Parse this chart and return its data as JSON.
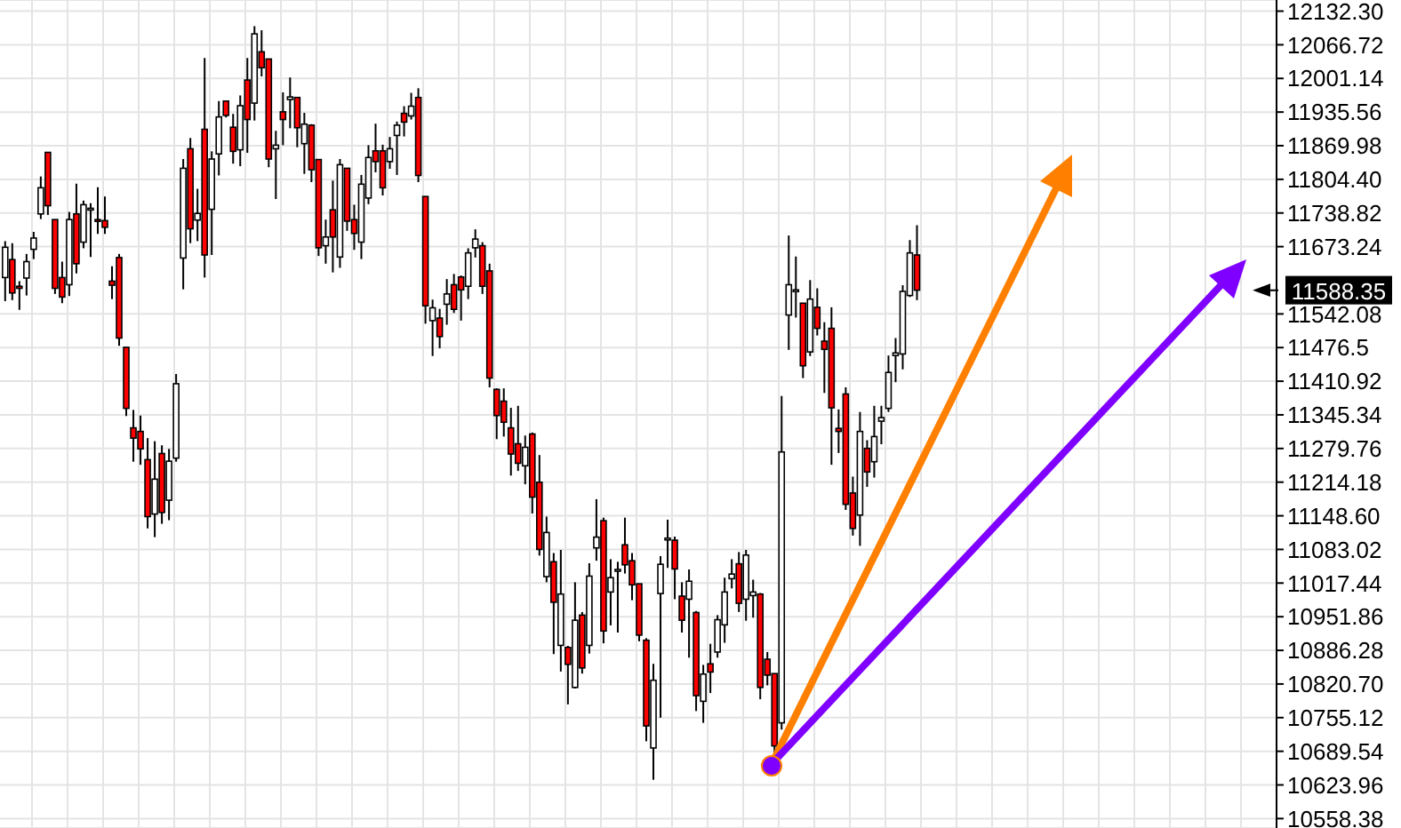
{
  "chart_data": {
    "type": "candlestick",
    "categories": [
      null,
      null,
      null,
      null,
      null,
      null,
      null,
      null,
      null,
      null,
      null,
      null,
      null,
      null,
      null,
      null,
      null,
      null,
      null,
      null,
      null,
      null,
      null,
      null,
      null,
      null,
      null,
      null,
      null,
      null,
      null,
      null,
      null,
      null,
      null,
      null,
      null,
      null,
      null,
      null,
      null,
      null,
      null,
      null,
      null,
      null,
      null,
      null,
      null,
      null,
      null,
      null,
      null,
      null,
      null,
      null,
      null,
      null,
      null,
      null,
      null,
      null,
      null,
      null,
      null,
      null,
      null,
      null,
      null,
      null,
      null,
      null,
      null,
      null,
      null,
      null,
      null,
      null,
      null,
      null,
      null,
      null,
      null,
      null,
      null,
      null,
      null,
      null,
      null,
      null,
      null,
      null,
      null,
      null,
      null,
      null,
      null,
      null,
      null,
      null,
      null,
      null,
      null,
      null,
      null,
      null,
      null,
      null,
      null,
      null,
      null,
      null,
      null,
      null,
      null,
      null,
      null,
      null,
      null,
      null,
      null,
      null,
      null,
      null,
      null,
      null,
      null,
      null,
      null,
      null,
      null,
      null,
      null,
      null,
      null,
      null,
      null,
      null,
      null,
      null,
      null,
      null,
      null,
      null,
      null,
      null,
      null,
      null,
      null,
      null,
      null,
      null,
      null,
      null,
      null,
      null,
      null,
      null,
      null,
      null,
      null,
      null,
      null,
      null,
      null,
      null,
      null,
      null,
      null,
      null,
      null,
      null,
      null,
      null,
      null,
      null,
      null,
      null,
      null
    ],
    "ohlc": [
      [
        11613,
        11684,
        11567,
        11672
      ],
      [
        11648,
        11680,
        11569,
        11583
      ],
      [
        11596,
        11606,
        11550,
        11592
      ],
      [
        11612,
        11659,
        11578,
        11644
      ],
      [
        11668,
        11702,
        11649,
        11690
      ],
      [
        11737,
        11810,
        11727,
        11788
      ],
      [
        11857,
        11857,
        11735,
        11753
      ],
      [
        11726,
        11726,
        11581,
        11592
      ],
      [
        11613,
        11644,
        11563,
        11575
      ],
      [
        11599,
        11741,
        11577,
        11726
      ],
      [
        11737,
        11796,
        11621,
        11640
      ],
      [
        11682,
        11763,
        11670,
        11755
      ],
      [
        11746,
        11758,
        11653,
        11748
      ],
      [
        11726,
        11789,
        11698,
        11725
      ],
      [
        11724,
        11771,
        11698,
        11711
      ],
      [
        11606,
        11635,
        11571,
        11598
      ],
      [
        11652,
        11659,
        11480,
        11495
      ],
      [
        11477,
        11477,
        11343,
        11358
      ],
      [
        11320,
        11355,
        11254,
        11300
      ],
      [
        11313,
        11344,
        11248,
        11279
      ],
      [
        11258,
        11300,
        11124,
        11147
      ],
      [
        11152,
        11294,
        11107,
        11220
      ],
      [
        11270,
        11286,
        11133,
        11155
      ],
      [
        11179,
        11279,
        11140,
        11255
      ],
      [
        11261,
        11425,
        11254,
        11406
      ],
      [
        11651,
        11844,
        11590,
        11826
      ],
      [
        11864,
        11885,
        11680,
        11708
      ],
      [
        11725,
        11786,
        11684,
        11738
      ],
      [
        11902,
        12041,
        11613,
        11657
      ],
      [
        11746,
        11859,
        11657,
        11844
      ],
      [
        11854,
        11957,
        11812,
        11926
      ],
      [
        11957,
        11957,
        11925,
        11929
      ],
      [
        11906,
        11932,
        11835,
        11859
      ],
      [
        11862,
        11968,
        11830,
        11948
      ],
      [
        11998,
        12041,
        11856,
        11921
      ],
      [
        11953,
        12103,
        11919,
        12088
      ],
      [
        12053,
        12095,
        12005,
        12022
      ],
      [
        12039,
        12039,
        11828,
        11844
      ],
      [
        11864,
        11899,
        11766,
        11871
      ],
      [
        11936,
        11974,
        11871,
        11921
      ],
      [
        11960,
        12003,
        11904,
        11965
      ],
      [
        11964,
        11964,
        11867,
        11905
      ],
      [
        11874,
        11934,
        11815,
        11912
      ],
      [
        11910,
        11912,
        11799,
        11823
      ],
      [
        11843,
        11843,
        11655,
        11671
      ],
      [
        11675,
        11726,
        11640,
        11692
      ],
      [
        11745,
        11802,
        11623,
        11692
      ],
      [
        11653,
        11844,
        11632,
        11833
      ],
      [
        11826,
        11826,
        11704,
        11723
      ],
      [
        11726,
        11755,
        11667,
        11699
      ],
      [
        11682,
        11813,
        11649,
        11795
      ],
      [
        11768,
        11871,
        11756,
        11847
      ],
      [
        11860,
        11913,
        11818,
        11839
      ],
      [
        11860,
        11872,
        11773,
        11788
      ],
      [
        11839,
        11887,
        11825,
        11864
      ],
      [
        11890,
        11917,
        11813,
        11910
      ],
      [
        11933,
        11947,
        11888,
        11916
      ],
      [
        11928,
        11973,
        11921,
        11947
      ],
      [
        11964,
        11982,
        11799,
        11812
      ],
      [
        11771,
        11771,
        11523,
        11558
      ],
      [
        11529,
        11570,
        11460,
        11554
      ],
      [
        11534,
        11552,
        11475,
        11498
      ],
      [
        11561,
        11610,
        11521,
        11581
      ],
      [
        11599,
        11620,
        11544,
        11551
      ],
      [
        11614,
        11617,
        11529,
        11589
      ],
      [
        11596,
        11670,
        11571,
        11661
      ],
      [
        11671,
        11707,
        11652,
        11688
      ],
      [
        11675,
        11682,
        11581,
        11596
      ],
      [
        11626,
        11640,
        11399,
        11417
      ],
      [
        11395,
        11397,
        11298,
        11344
      ],
      [
        11372,
        11397,
        11303,
        11331
      ],
      [
        11320,
        11359,
        11227,
        11269
      ],
      [
        11289,
        11363,
        11236,
        11251
      ],
      [
        11246,
        11305,
        11210,
        11282
      ],
      [
        11308,
        11311,
        11153,
        11185
      ],
      [
        11214,
        11267,
        11071,
        11083
      ],
      [
        11030,
        11147,
        11019,
        11116
      ],
      [
        11059,
        11076,
        10879,
        10980
      ],
      [
        10896,
        11082,
        10845,
        10996
      ],
      [
        10892,
        10895,
        10781,
        10859
      ],
      [
        10814,
        11019,
        10812,
        10945
      ],
      [
        10955,
        10961,
        10841,
        10852
      ],
      [
        10896,
        11056,
        10880,
        11031
      ],
      [
        11086,
        11181,
        11061,
        11107
      ],
      [
        11139,
        11145,
        10900,
        10924
      ],
      [
        11000,
        11064,
        10935,
        11028
      ],
      [
        11043,
        11059,
        10921,
        11044
      ],
      [
        11092,
        11145,
        11036,
        11053
      ],
      [
        11061,
        11076,
        10984,
        11014
      ],
      [
        11016,
        11016,
        10904,
        10916
      ],
      [
        10906,
        10910,
        10709,
        10739
      ],
      [
        10696,
        10860,
        10634,
        10828
      ],
      [
        10997,
        11070,
        10755,
        11054
      ],
      [
        11104,
        11141,
        11047,
        11105
      ],
      [
        11101,
        11108,
        10986,
        11045
      ],
      [
        10992,
        11019,
        10921,
        10945
      ],
      [
        10986,
        11044,
        10872,
        11021
      ],
      [
        10960,
        10963,
        10768,
        10798
      ],
      [
        10787,
        10858,
        10745,
        10840
      ],
      [
        10860,
        10899,
        10803,
        10844
      ],
      [
        10883,
        10955,
        10872,
        10946
      ],
      [
        10936,
        11028,
        10901,
        11000
      ],
      [
        11026,
        11064,
        11007,
        11035
      ],
      [
        11055,
        11078,
        10961,
        10978
      ],
      [
        10986,
        11082,
        10944,
        11072
      ],
      [
        10993,
        11024,
        10950,
        11000
      ],
      [
        10996,
        10998,
        10791,
        10814
      ],
      [
        10869,
        10883,
        10818,
        10838
      ],
      [
        10841,
        10841,
        10686,
        10700
      ],
      [
        10745,
        11382,
        10732,
        11273
      ],
      [
        11540,
        11695,
        11472,
        11599
      ],
      [
        11588,
        11654,
        11535,
        11589
      ],
      [
        11563,
        11563,
        11417,
        11441
      ],
      [
        11468,
        11608,
        11460,
        11571
      ],
      [
        11555,
        11592,
        11500,
        11514
      ],
      [
        11489,
        11526,
        11388,
        11473
      ],
      [
        11514,
        11555,
        11248,
        11359
      ],
      [
        11319,
        11356,
        11271,
        11313
      ],
      [
        11386,
        11399,
        11160,
        11171
      ],
      [
        11193,
        11225,
        11110,
        11124
      ],
      [
        11150,
        11351,
        11090,
        11313
      ],
      [
        11280,
        11296,
        11205,
        11234
      ],
      [
        11254,
        11363,
        11223,
        11303
      ],
      [
        11333,
        11363,
        11288,
        11340
      ],
      [
        11358,
        11461,
        11351,
        11428
      ],
      [
        11461,
        11495,
        11409,
        11466
      ],
      [
        11464,
        11598,
        11434,
        11586
      ],
      [
        11578,
        11686,
        11575,
        11661
      ],
      [
        11657,
        11715,
        11569,
        11588.35
      ],
      null,
      null,
      null,
      null,
      null,
      null,
      null,
      null,
      null,
      null,
      null,
      null,
      null,
      null,
      null,
      null,
      null,
      null,
      null,
      null,
      null,
      null,
      null,
      null,
      null,
      null,
      null,
      null,
      null,
      null,
      null,
      null,
      null,
      null,
      null,
      null,
      null,
      null,
      null,
      null,
      null,
      null,
      null,
      null,
      null,
      null,
      null,
      null,
      null,
      null
    ],
    "ylim": [
      10540,
      12154
    ],
    "yticks": [
      {
        "value": 12132.3,
        "label": "12132.30"
      },
      12066.72,
      12001.14,
      11935.56,
      11869.98,
      {
        "value": 11804.4,
        "label": "11804.40"
      },
      11738.82,
      11673.24,
      11542.08,
      11476.5,
      11410.92,
      11345.34,
      11279.76,
      11214.18,
      {
        "value": 11148.6,
        "label": "11148.60"
      },
      11083.02,
      11017.44,
      10951.86,
      10886.28,
      {
        "value": 10820.7,
        "label": "10820.70"
      },
      10755.12,
      10689.54,
      10623.96,
      10558.38
    ],
    "annotations": [
      "11588.35"
    ],
    "grid": true
  }
}
